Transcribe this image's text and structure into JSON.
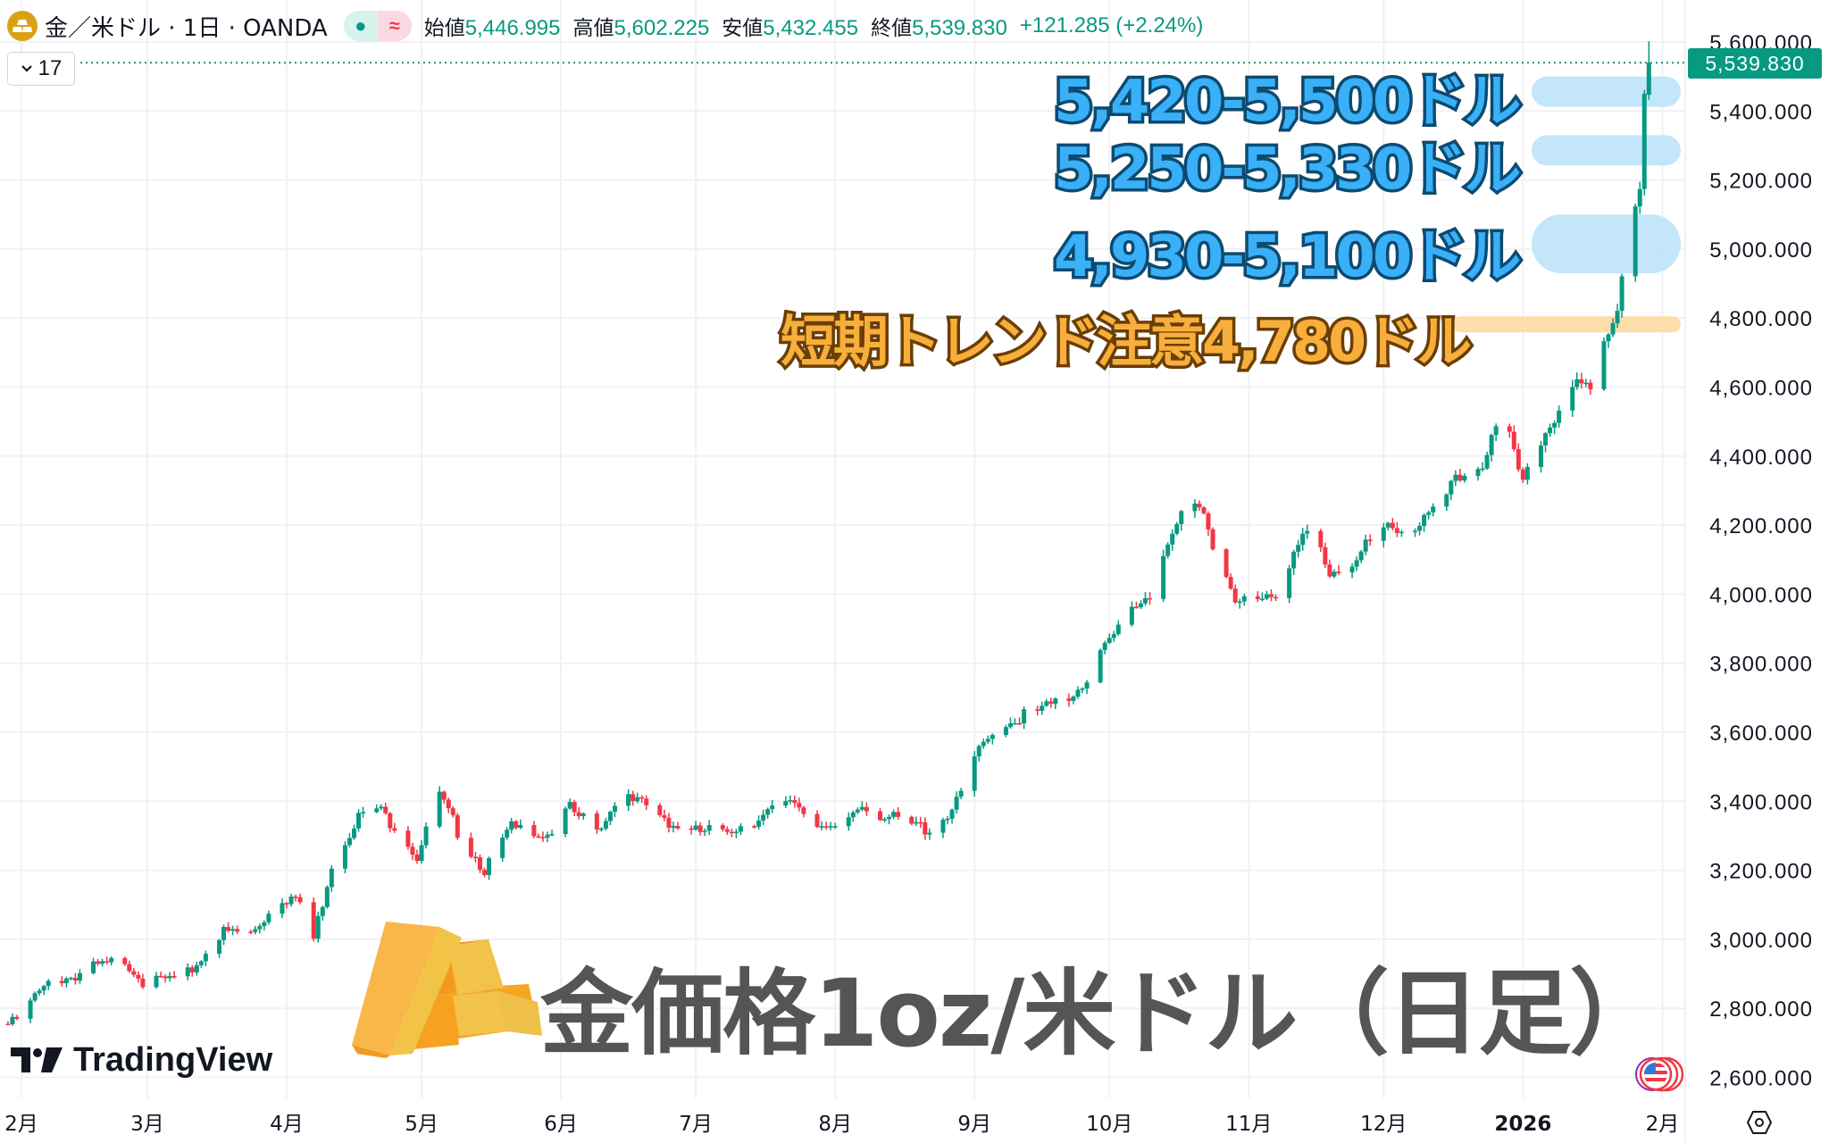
{
  "header": {
    "symbol_title": "金／米ドル · 1日 · OANDA",
    "ohlc": [
      {
        "label": "始値",
        "value": "5,446.995"
      },
      {
        "label": "高値",
        "value": "5,602.225"
      },
      {
        "label": "安値",
        "value": "5,432.455"
      },
      {
        "label": "終値",
        "value": "5,539.830"
      }
    ],
    "change": "+121.285 (+2.24%)",
    "market_open_icon": "dot",
    "indicator_icon": "≈"
  },
  "collapse_button": {
    "icon": "chevron-down",
    "count": "17"
  },
  "current_price_label": "5,539.830",
  "annotations": [
    {
      "text": "5,420-5,500ドル",
      "zone": [
        5420,
        5500
      ],
      "color": "#bde3fb"
    },
    {
      "text": "5,250-5,330ドル",
      "zone": [
        5250,
        5330
      ],
      "color": "#bde3fb"
    },
    {
      "text": "4,930-5,100ドル",
      "zone": [
        4930,
        5100
      ],
      "color": "#bde3fb"
    },
    {
      "text": "短期トレンド注意4,780ドル",
      "zone": [
        4760,
        4800
      ],
      "color": "#fdd9a0"
    }
  ],
  "overlay_title": "金価格1oz/米ドル（日足）",
  "brand": "TradingView",
  "colors": {
    "up": "#089981",
    "down": "#f23645",
    "grid": "#f0f1f3"
  },
  "chart_data": {
    "type": "candlestick",
    "x_unit": "days from 2025-02-01",
    "y_ticks": [
      "2,600.000",
      "2,800.000",
      "3,000.000",
      "3,200.000",
      "3,400.000",
      "3,600.000",
      "3,800.000",
      "4,000.000",
      "4,200.000",
      "4,400.000",
      "4,600.000",
      "4,800.000",
      "5,000.000",
      "5,200.000",
      "5,400.000",
      "5,600.000"
    ],
    "ylim": [
      2600,
      5600
    ],
    "x_ticks": [
      {
        "label": "2月",
        "day": 0
      },
      {
        "label": "3月",
        "day": 28
      },
      {
        "label": "4月",
        "day": 59
      },
      {
        "label": "5月",
        "day": 89
      },
      {
        "label": "6月",
        "day": 120
      },
      {
        "label": "7月",
        "day": 150
      },
      {
        "label": "8月",
        "day": 181
      },
      {
        "label": "9月",
        "day": 212
      },
      {
        "label": "10月",
        "day": 242
      },
      {
        "label": "11月",
        "day": 273
      },
      {
        "label": "12月",
        "day": 303
      },
      {
        "label": "2026",
        "day": 334
      },
      {
        "label": "2月",
        "day": 365
      }
    ],
    "close_path": [
      [
        -3,
        2765
      ],
      [
        6,
        2867
      ],
      [
        16,
        2917
      ],
      [
        23,
        2940
      ],
      [
        28,
        2867
      ],
      [
        37,
        2900
      ],
      [
        45,
        3019
      ],
      [
        51,
        3019
      ],
      [
        58,
        3120
      ],
      [
        61,
        3120
      ],
      [
        65,
        3000
      ],
      [
        69,
        3220
      ],
      [
        74,
        3340
      ],
      [
        78,
        3390
      ],
      [
        84,
        3320
      ],
      [
        88,
        3240
      ],
      [
        93,
        3410
      ],
      [
        98,
        3290
      ],
      [
        103,
        3205
      ],
      [
        109,
        3320
      ],
      [
        117,
        3305
      ],
      [
        122,
        3375
      ],
      [
        128,
        3320
      ],
      [
        133,
        3410
      ],
      [
        141,
        3375
      ],
      [
        148,
        3305
      ],
      [
        156,
        3320
      ],
      [
        164,
        3340
      ],
      [
        171,
        3410
      ],
      [
        180,
        3305
      ],
      [
        187,
        3390
      ],
      [
        195,
        3340
      ],
      [
        202,
        3320
      ],
      [
        208,
        3390
      ],
      [
        213,
        3540
      ],
      [
        218,
        3627
      ],
      [
        226,
        3660
      ],
      [
        231,
        3680
      ],
      [
        237,
        3760
      ],
      [
        242,
        3860
      ],
      [
        247,
        3965
      ],
      [
        252,
        4015
      ],
      [
        256,
        4150
      ],
      [
        260,
        4320
      ],
      [
        263,
        4235
      ],
      [
        266,
        4100
      ],
      [
        270,
        3965
      ],
      [
        275,
        4000
      ],
      [
        281,
        4015
      ],
      [
        283,
        4115
      ],
      [
        287,
        4185
      ],
      [
        291,
        4065
      ],
      [
        296,
        4080
      ],
      [
        300,
        4150
      ],
      [
        305,
        4200
      ],
      [
        310,
        4200
      ],
      [
        314,
        4235
      ],
      [
        320,
        4335
      ],
      [
        325,
        4385
      ],
      [
        330,
        4520
      ],
      [
        333,
        4335
      ],
      [
        335,
        4370
      ],
      [
        339,
        4470
      ],
      [
        343,
        4540
      ],
      [
        346,
        4605
      ],
      [
        349,
        4605
      ],
      [
        352,
        4740
      ],
      [
        355,
        4840
      ],
      [
        357,
        5010
      ],
      [
        360,
        5160
      ],
      [
        361,
        5418
      ]
    ],
    "last_candle": {
      "day": 362,
      "open": 5446.995,
      "high": 5602.225,
      "low": 5432.455,
      "close": 5539.83
    }
  }
}
